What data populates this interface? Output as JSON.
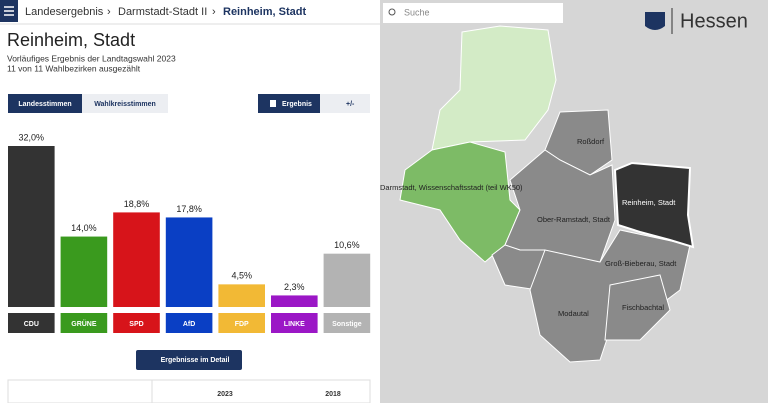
{
  "breadcrumb": [
    "Landesergebnis",
    "Darmstadt-Stadt II",
    "Reinheim, Stadt"
  ],
  "header": {
    "title": "Reinheim, Stadt",
    "subtitle": "Vorläufiges Ergebnis der Landtagswahl 2023",
    "status": "11 von 11 Wahlbezirken ausgezählt"
  },
  "tabs": [
    "Landesstimmen",
    "Wahlkreisstimmen"
  ],
  "view_buttons": [
    "Ergebnis",
    "+/-"
  ],
  "detail_button": "Ergebnisse im Detail",
  "table": {
    "columns": [
      "2023",
      "2018"
    ]
  },
  "map": {
    "search": "Suche",
    "logo": "Hessen",
    "regions": [
      "Roßdorf",
      "Darmstadt, Wissenschaftsstadt (teil WK50)",
      "Ober-Ramstadt, Stadt",
      "Reinheim, Stadt",
      "Groß-Bieberau, Stadt",
      "Modautal",
      "Fischbachtal"
    ]
  },
  "chart_data": {
    "type": "bar",
    "categories": [
      "CDU",
      "GRÜNE",
      "SPD",
      "AfD",
      "FDP",
      "LINKE",
      "Sonstige"
    ],
    "values": [
      32.0,
      14.0,
      18.8,
      17.8,
      4.5,
      2.3,
      10.6
    ],
    "value_labels": [
      "32,0%",
      "14,0%",
      "18,8%",
      "17,8%",
      "4,5%",
      "2,3%",
      "10,6%"
    ],
    "colors": [
      "#333333",
      "#3a9a1e",
      "#d7141a",
      "#0a3fc4",
      "#f2b935",
      "#9b17c6",
      "#b3b3b3"
    ]
  }
}
